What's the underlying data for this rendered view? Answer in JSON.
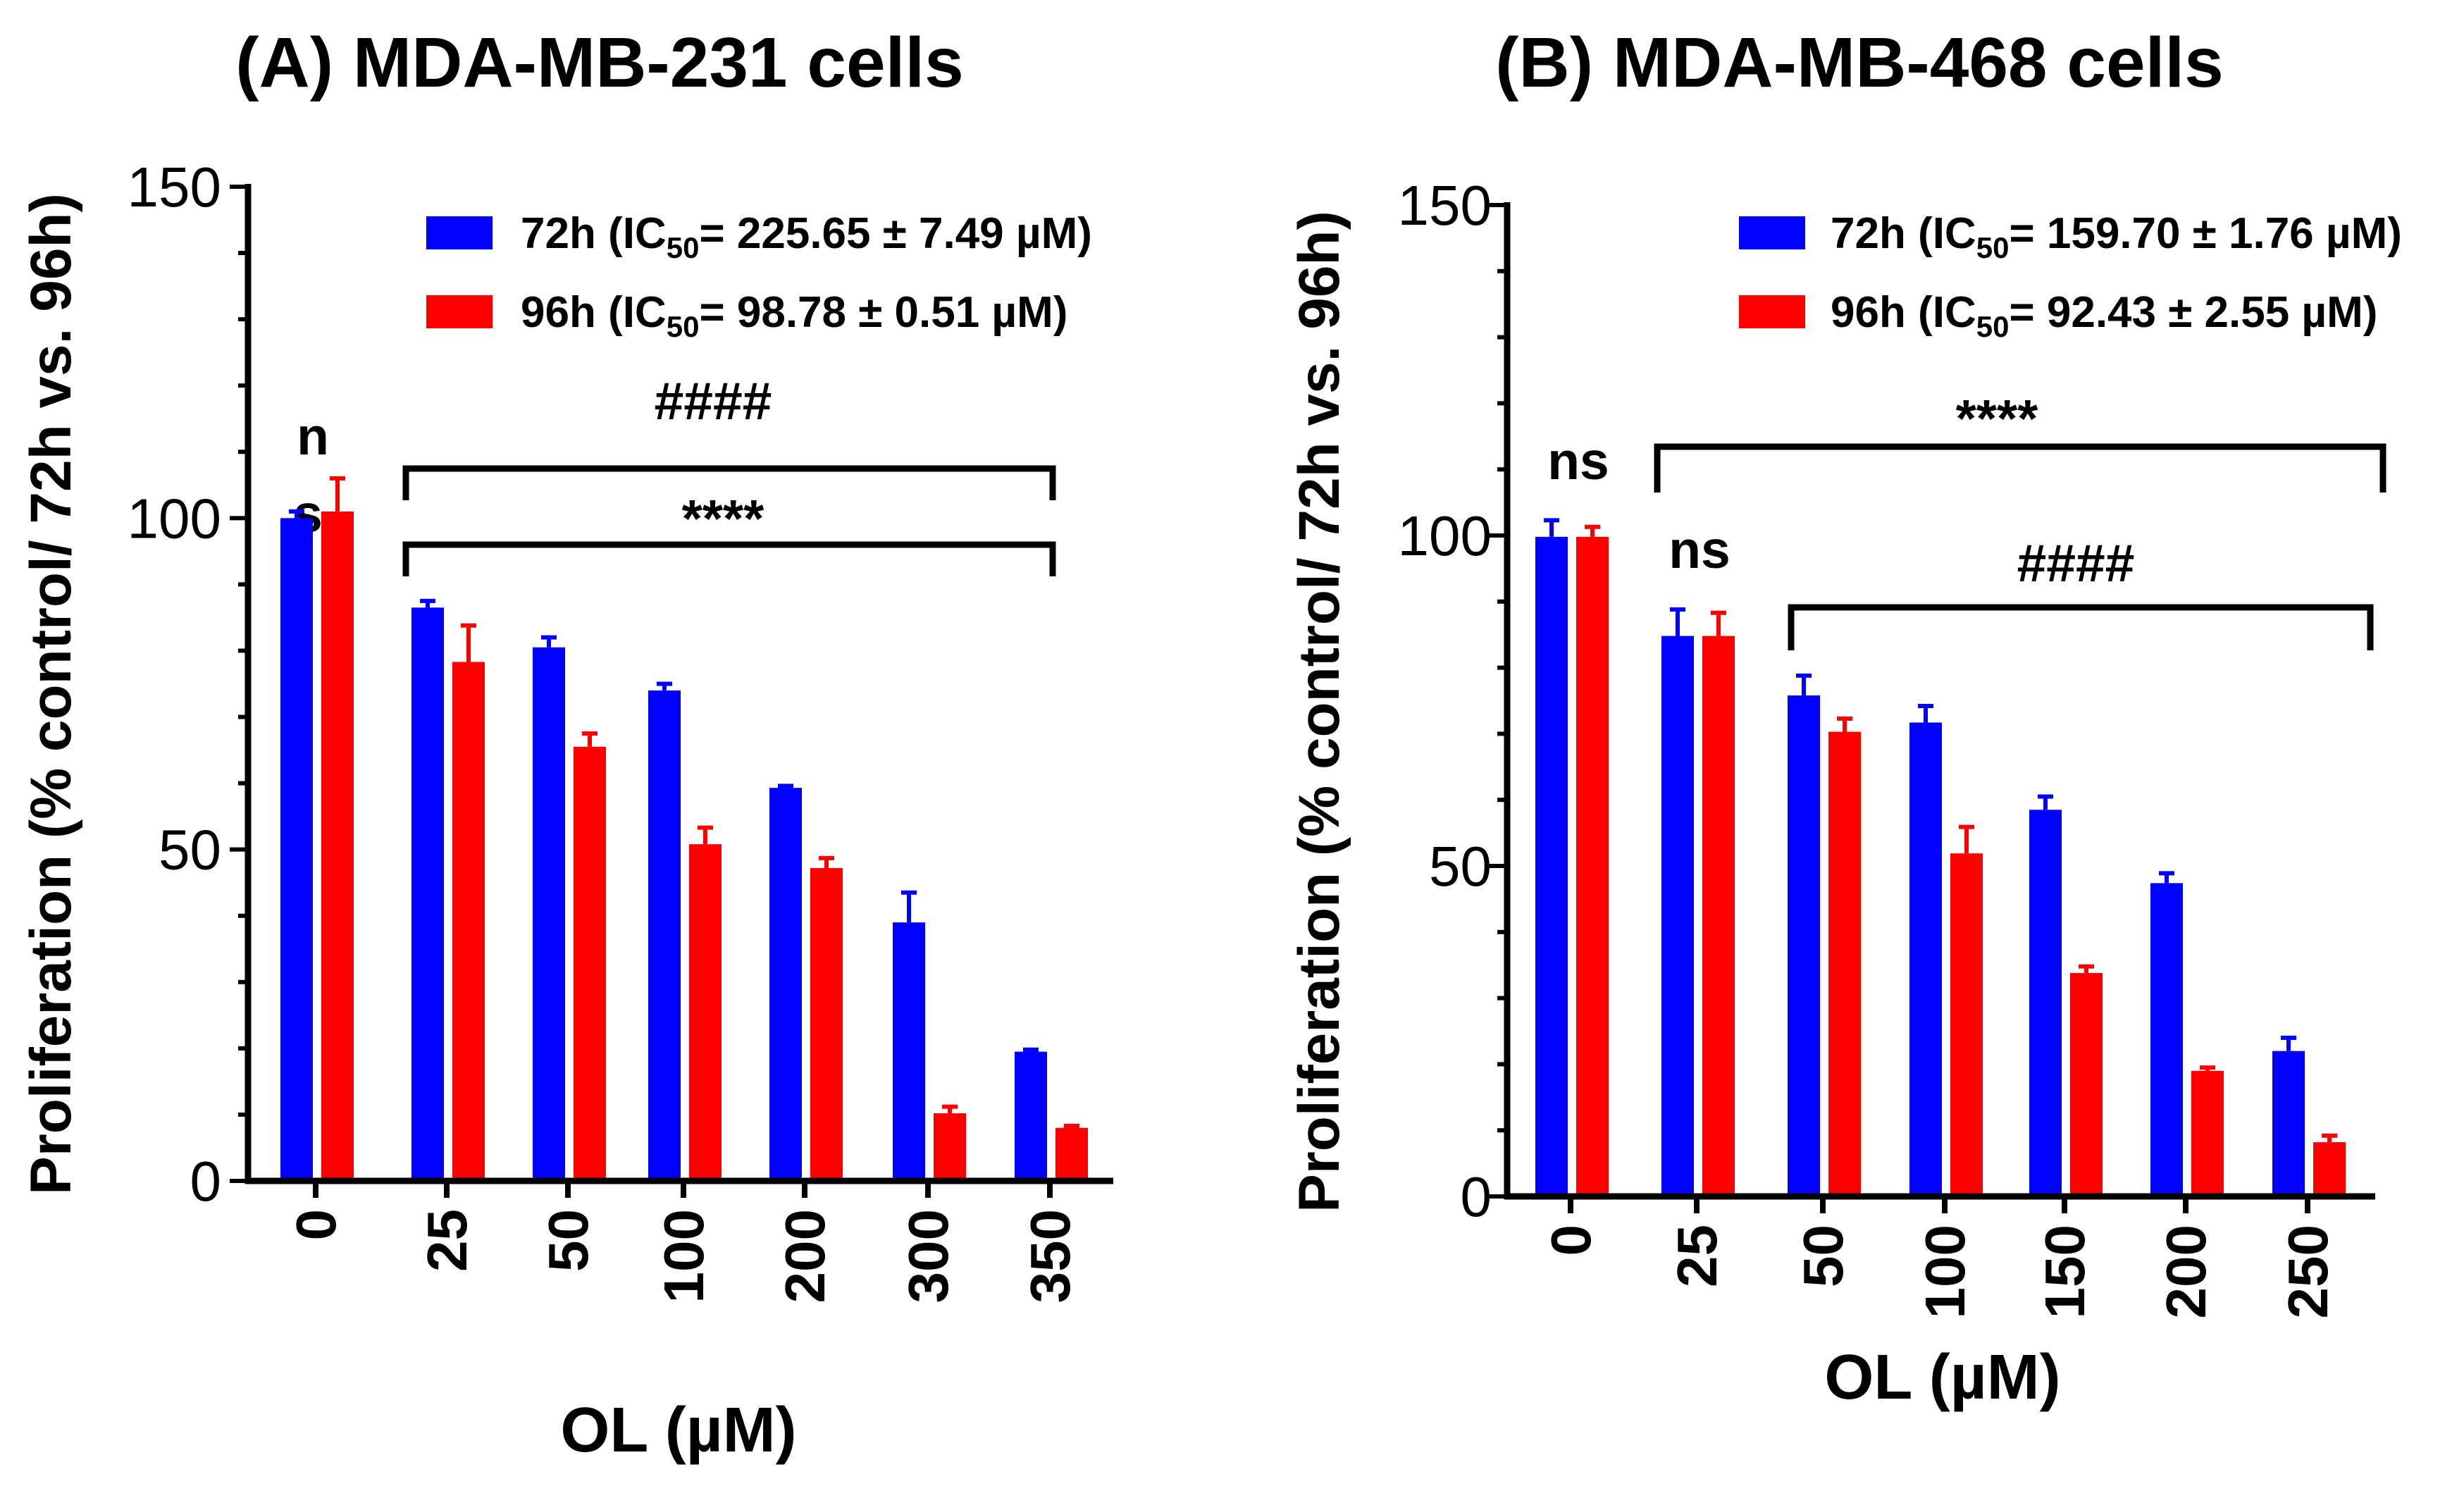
{
  "chart_data": [
    {
      "type": "bar",
      "title": "(A) MDA-MB-231 cells",
      "xlabel": "OL (µM)",
      "ylabel": "Proliferation (% control/ 72h vs. 96h)",
      "ylim": [
        0,
        150
      ],
      "yticks": [
        "0",
        "50",
        "100",
        "150"
      ],
      "categories": [
        "0",
        "25",
        "50",
        "100",
        "200",
        "300",
        "350"
      ],
      "legend_position": "top-right",
      "series": [
        {
          "name": "72h",
          "legend_text": "72h (IC",
          "legend_sub": "50",
          "legend_rest": "= 225.65 ± 7.49 µM)",
          "color": "#0000ff",
          "values": [
            100,
            86.5,
            80.5,
            74,
            59.3,
            39,
            19.5
          ],
          "errors": [
            1,
            1,
            1.5,
            1,
            0.3,
            4.5,
            0.3
          ]
        },
        {
          "name": "96h",
          "legend_text": "96h (IC",
          "legend_sub": "50",
          "legend_rest": "= 98.78 ± 0.51 µM)",
          "color": "#ff0000",
          "values": [
            101,
            78.3,
            65.5,
            50.8,
            47.2,
            10.2,
            8
          ],
          "errors": [
            5,
            5.5,
            2,
            2.5,
            1.5,
            1,
            0.3
          ]
        }
      ],
      "annotations": {
        "ns_top": "n",
        "ns_bottom": "s",
        "hash": "####",
        "stars": "****"
      }
    },
    {
      "type": "bar",
      "title": "(B) MDA-MB-468 cells",
      "xlabel": "OL (µM)",
      "ylabel": "Proliferation (% control/ 72h vs. 96h)",
      "ylim": [
        0,
        150
      ],
      "yticks": [
        "0",
        "50",
        "100",
        "150"
      ],
      "categories": [
        "0",
        "25",
        "50",
        "100",
        "150",
        "200",
        "250"
      ],
      "legend_position": "top-right",
      "series": [
        {
          "name": "72h",
          "legend_text": "72h (IC",
          "legend_sub": "50",
          "legend_rest": "= 159.70 ± 1.76 µM)",
          "color": "#0000ff",
          "values": [
            99.8,
            84.8,
            75.8,
            71.7,
            58.5,
            47.4,
            22
          ],
          "errors": [
            2.5,
            4,
            3,
            2.5,
            2,
            1.5,
            2
          ]
        },
        {
          "name": "96h",
          "legend_text": "96h (IC",
          "legend_sub": "50",
          "legend_rest": "= 92.43 ± 2.55 µM)",
          "color": "#ff0000",
          "values": [
            99.8,
            84.8,
            70.3,
            51.9,
            33.8,
            19,
            8.2
          ],
          "errors": [
            1.5,
            3.5,
            2,
            4,
            1,
            0.5,
            1
          ]
        }
      ],
      "annotations": {
        "ns1": "ns",
        "ns2": "ns",
        "stars": "****",
        "hash": "####"
      }
    }
  ]
}
